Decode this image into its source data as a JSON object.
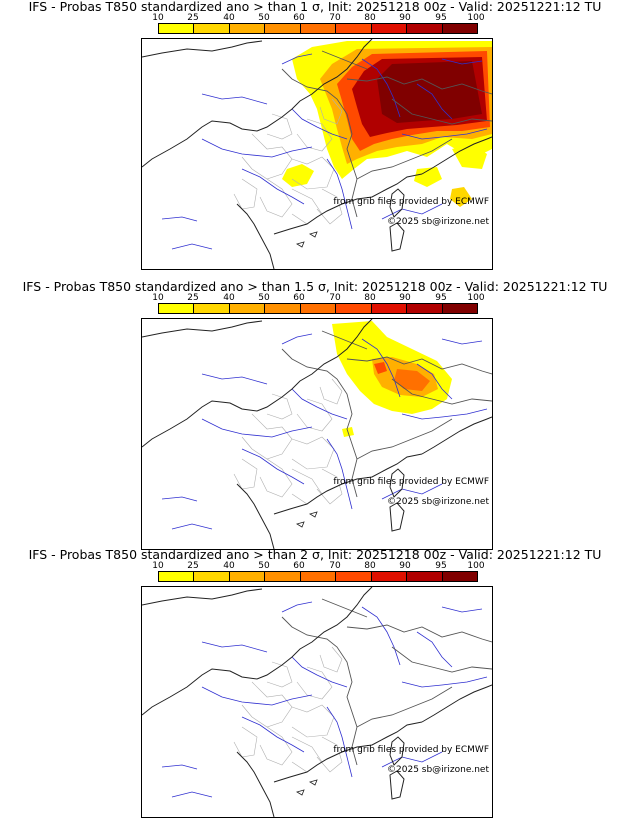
{
  "panels": [
    {
      "title": "IFS - Probas T850  standardized ano > than 1 σ, Init: 20251218 00z - Valid: 20251221:12 TU",
      "intensity": "strong"
    },
    {
      "title": "IFS - Probas T850  standardized ano > than 1.5 σ, Init: 20251218 00z - Valid: 20251221:12 TU",
      "intensity": "moderate"
    },
    {
      "title": "IFS - Probas T850  standardized ano > than 2 σ, Init: 20251218 00z - Valid: 20251221:12 TU",
      "intensity": "none"
    }
  ],
  "colorbar": {
    "ticks": [
      "10",
      "25",
      "40",
      "50",
      "60",
      "70",
      "80",
      "90",
      "95",
      "100"
    ],
    "colors": [
      "#ffff00",
      "#ffd700",
      "#ffb000",
      "#ff9000",
      "#ff7000",
      "#ff4a00",
      "#e01000",
      "#b00000",
      "#800000"
    ]
  },
  "credits": {
    "source": "from grib files provided by ECMWF",
    "copyright": "©2025 sb@irizone.net"
  }
}
